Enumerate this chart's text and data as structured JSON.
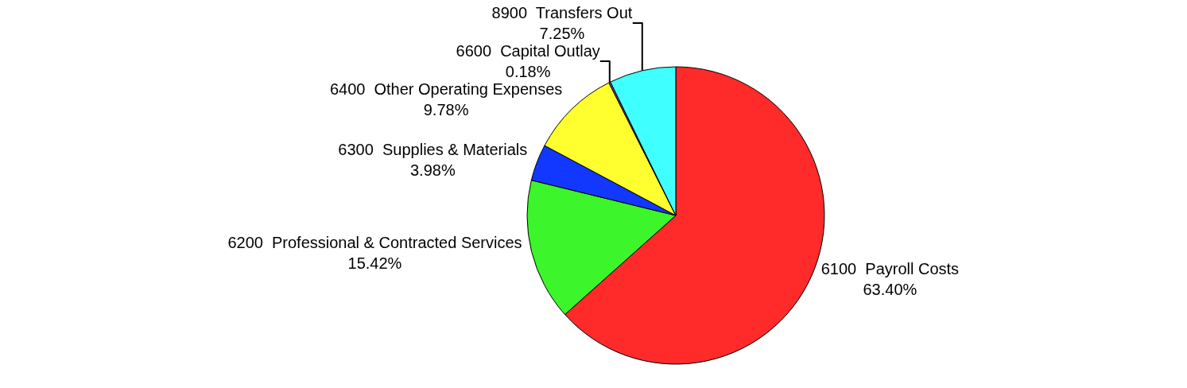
{
  "chart_data": {
    "type": "pie",
    "categories": [
      "6100  Payroll Costs",
      "6200  Professional & Contracted Services",
      "6300  Supplies & Materials",
      "6400  Other Operating Expenses",
      "6600  Capital Outlay",
      "8900  Transfers Out"
    ],
    "values": [
      63.4,
      15.42,
      3.98,
      9.78,
      0.18,
      7.25
    ],
    "value_labels": [
      "63.40%",
      "15.42%",
      "3.98%",
      "9.78%",
      "0.18%",
      "7.25%"
    ],
    "colors": [
      "#ff2a2a",
      "#3cf52a",
      "#1238ff",
      "#ffff30",
      "#8a3fa8",
      "#40ffff"
    ],
    "legend": false
  }
}
